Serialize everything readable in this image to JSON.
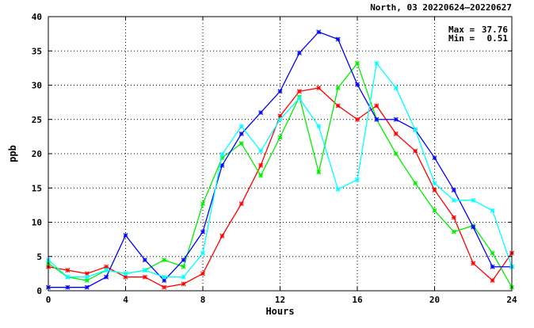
{
  "chart_data": {
    "type": "line",
    "title": "North, 03 20220624–20220627",
    "xlabel": "Hours",
    "ylabel": "ppb",
    "xlim": [
      0,
      24
    ],
    "ylim": [
      0,
      40
    ],
    "x_ticks": [
      "0",
      "4",
      "8",
      "12",
      "16",
      "20",
      "24"
    ],
    "y_ticks": [
      "0",
      "5",
      "10",
      "15",
      "20",
      "25",
      "30",
      "35",
      "40"
    ],
    "grid": true,
    "stats": {
      "max_label": "Max =",
      "max_value": "37.76",
      "min_label": "Min =",
      "min_value": "0.51"
    },
    "x": [
      0,
      1,
      2,
      3,
      4,
      5,
      6,
      7,
      8,
      9,
      10,
      11,
      12,
      13,
      14,
      15,
      16,
      17,
      18,
      19,
      20,
      21,
      22,
      23,
      24
    ],
    "series": [
      {
        "color": "#ff0000",
        "values": [
          3.5,
          3.0,
          2.5,
          3.5,
          2.0,
          2.0,
          0.5,
          1.0,
          2.5,
          8.0,
          12.7,
          18.3,
          25.5,
          29.1,
          29.6,
          27.0,
          25.0,
          27.0,
          22.9,
          20.4,
          14.7,
          10.7,
          4.0,
          1.5,
          5.5
        ]
      },
      {
        "color": "#00ee00",
        "values": [
          4.0,
          2.0,
          1.5,
          3.0,
          2.5,
          3.0,
          4.5,
          3.5,
          12.7,
          19.4,
          21.5,
          16.8,
          22.4,
          28.3,
          17.3,
          29.6,
          33.2,
          25.0,
          20.0,
          15.7,
          11.7,
          8.6,
          9.5,
          5.5,
          0.51
        ]
      },
      {
        "color": "#0000ff",
        "values": [
          0.5,
          0.5,
          0.5,
          2.0,
          8.1,
          4.5,
          1.5,
          4.5,
          8.6,
          18.3,
          22.9,
          26.0,
          29.1,
          34.7,
          37.76,
          36.7,
          30.1,
          25.0,
          25.0,
          23.5,
          19.4,
          14.7,
          9.3,
          3.5,
          3.5
        ]
      },
      {
        "color": "#00ffff",
        "values": [
          4.5,
          2.0,
          2.0,
          3.0,
          2.5,
          3.0,
          2.0,
          2.0,
          5.5,
          19.9,
          24.0,
          20.4,
          25.0,
          28.1,
          24.0,
          14.8,
          16.2,
          33.2,
          29.6,
          23.5,
          15.7,
          13.2,
          13.2,
          11.7,
          3.5
        ]
      }
    ]
  }
}
